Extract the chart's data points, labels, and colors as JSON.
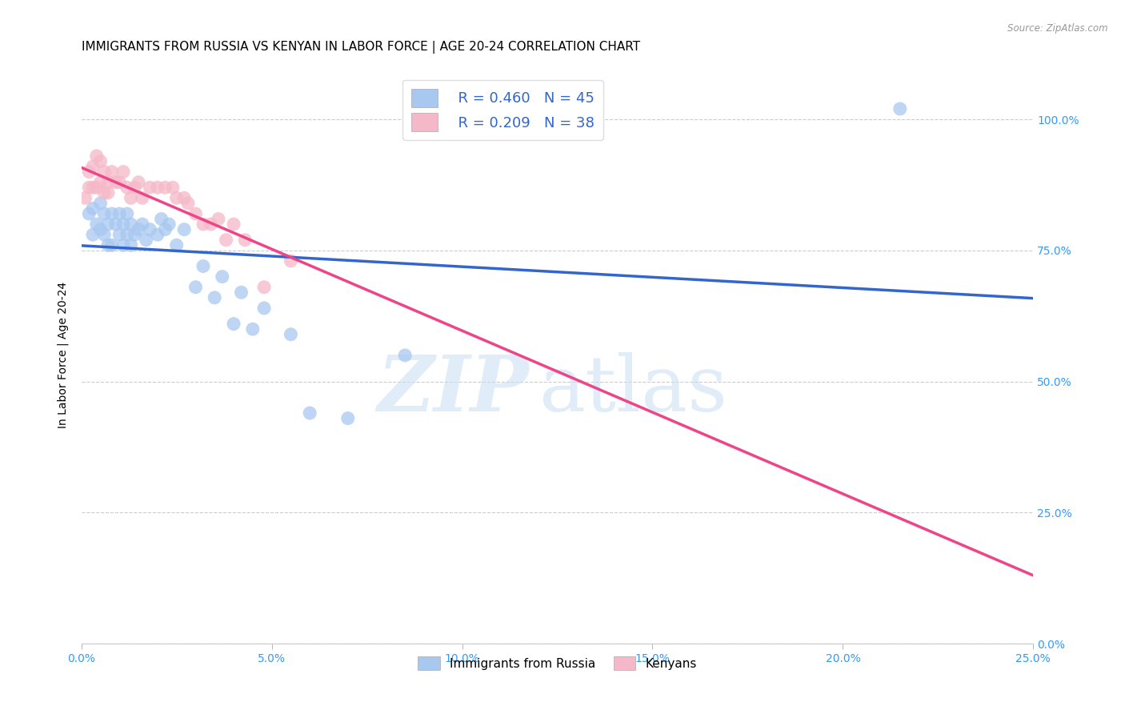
{
  "title": "IMMIGRANTS FROM RUSSIA VS KENYAN IN LABOR FORCE | AGE 20-24 CORRELATION CHART",
  "source": "Source: ZipAtlas.com",
  "ylabel": "In Labor Force | Age 20-24",
  "xlim": [
    0.0,
    0.25
  ],
  "ylim": [
    0.0,
    1.1
  ],
  "xticks": [
    0.0,
    0.05,
    0.1,
    0.15,
    0.2,
    0.25
  ],
  "xticklabels": [
    "0.0%",
    "5.0%",
    "10.0%",
    "15.0%",
    "20.0%",
    "25.0%"
  ],
  "yticks": [
    0.0,
    0.25,
    0.5,
    0.75,
    1.0
  ],
  "yticklabels": [
    "0.0%",
    "25.0%",
    "50.0%",
    "75.0%",
    "100.0%"
  ],
  "russia_R": 0.46,
  "russia_N": 45,
  "kenya_R": 0.209,
  "kenya_N": 38,
  "russia_color": "#A8C8F0",
  "kenya_color": "#F5B8C8",
  "russia_line_color": "#3366CC",
  "kenya_line_color": "#EE4488",
  "russia_x": [
    0.002,
    0.003,
    0.003,
    0.004,
    0.005,
    0.005,
    0.006,
    0.006,
    0.007,
    0.007,
    0.008,
    0.008,
    0.009,
    0.01,
    0.01,
    0.011,
    0.011,
    0.012,
    0.012,
    0.013,
    0.013,
    0.014,
    0.015,
    0.016,
    0.017,
    0.018,
    0.02,
    0.021,
    0.022,
    0.023,
    0.025,
    0.027,
    0.03,
    0.032,
    0.035,
    0.037,
    0.04,
    0.042,
    0.045,
    0.048,
    0.055,
    0.06,
    0.07,
    0.085,
    0.215
  ],
  "russia_y": [
    0.82,
    0.78,
    0.83,
    0.8,
    0.79,
    0.84,
    0.78,
    0.82,
    0.8,
    0.76,
    0.82,
    0.76,
    0.8,
    0.82,
    0.78,
    0.8,
    0.76,
    0.82,
    0.78,
    0.8,
    0.76,
    0.78,
    0.79,
    0.8,
    0.77,
    0.79,
    0.78,
    0.81,
    0.79,
    0.8,
    0.76,
    0.79,
    0.68,
    0.72,
    0.66,
    0.7,
    0.61,
    0.67,
    0.6,
    0.64,
    0.59,
    0.44,
    0.43,
    0.55,
    1.02
  ],
  "kenya_x": [
    0.001,
    0.002,
    0.002,
    0.003,
    0.003,
    0.004,
    0.004,
    0.005,
    0.005,
    0.006,
    0.006,
    0.007,
    0.007,
    0.008,
    0.009,
    0.01,
    0.011,
    0.012,
    0.013,
    0.014,
    0.015,
    0.016,
    0.018,
    0.02,
    0.022,
    0.024,
    0.025,
    0.027,
    0.028,
    0.03,
    0.032,
    0.034,
    0.036,
    0.038,
    0.04,
    0.043,
    0.048,
    0.055
  ],
  "kenya_y": [
    0.85,
    0.87,
    0.9,
    0.87,
    0.91,
    0.87,
    0.93,
    0.88,
    0.92,
    0.86,
    0.9,
    0.88,
    0.86,
    0.9,
    0.88,
    0.88,
    0.9,
    0.87,
    0.85,
    0.87,
    0.88,
    0.85,
    0.87,
    0.87,
    0.87,
    0.87,
    0.85,
    0.85,
    0.84,
    0.82,
    0.8,
    0.8,
    0.81,
    0.77,
    0.8,
    0.77,
    0.68,
    0.73
  ],
  "background_color": "#ffffff",
  "title_fontsize": 11,
  "axis_label_fontsize": 10,
  "tick_fontsize": 10,
  "tick_color": "#3399FF",
  "grid_color": "#cccccc",
  "watermark_zip": "ZIP",
  "watermark_atlas": "atlas",
  "legend_russia_label": "Immigrants from Russia",
  "legend_kenya_label": "Kenyans"
}
